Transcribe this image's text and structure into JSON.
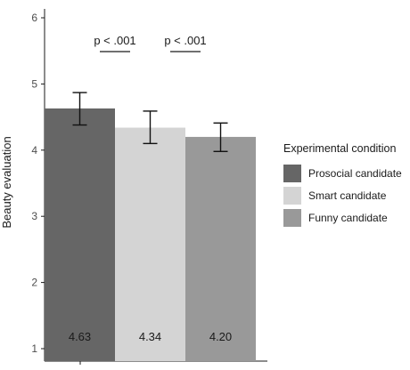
{
  "chart_data": {
    "type": "bar",
    "ylabel": "Beauty evaluation",
    "xlabel": "",
    "ylim": [
      1,
      6
    ],
    "yticks": [
      "1",
      "2",
      "3",
      "4",
      "5",
      "6"
    ],
    "categories": [
      "Prosocial candidate",
      "Smart candidate",
      "Funny candidate"
    ],
    "values": [
      4.63,
      4.34,
      4.2
    ],
    "value_labels": [
      "4.63",
      "4.34",
      "4.20"
    ],
    "error_low": [
      4.38,
      4.1,
      3.98
    ],
    "error_high": [
      4.87,
      4.59,
      4.41
    ],
    "colors": [
      "#666666",
      "#d4d4d4",
      "#999999"
    ],
    "grid": false,
    "legend": {
      "title": "Experimental condition",
      "placement": "right"
    },
    "annotations": [
      {
        "text": "p < .001",
        "between": [
          0,
          1
        ]
      },
      {
        "text": "p < .001",
        "between": [
          1,
          2
        ]
      }
    ]
  }
}
